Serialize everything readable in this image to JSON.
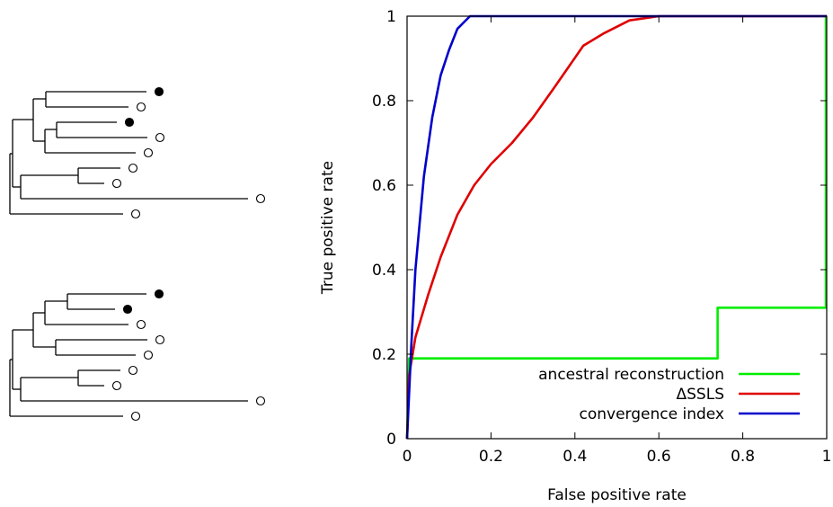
{
  "trees": [
    {
      "leaves": [
        {
          "state": "filled"
        },
        {
          "state": "open"
        },
        {
          "state": "filled"
        },
        {
          "state": "open"
        },
        {
          "state": "open"
        },
        {
          "state": "open"
        },
        {
          "state": "open"
        },
        {
          "state": "open"
        },
        {
          "state": "open"
        }
      ]
    },
    {
      "leaves": [
        {
          "state": "filled"
        },
        {
          "state": "filled"
        },
        {
          "state": "open"
        },
        {
          "state": "open"
        },
        {
          "state": "open"
        },
        {
          "state": "open"
        },
        {
          "state": "open"
        },
        {
          "state": "open"
        },
        {
          "state": "open"
        }
      ]
    }
  ],
  "chart_data": {
    "type": "line",
    "xlabel": "False positive rate",
    "ylabel": "True positive rate",
    "xlim": [
      0,
      1
    ],
    "ylim": [
      0,
      1
    ],
    "x_ticks": [
      "0",
      "0.2",
      "0.4",
      "0.6",
      "0.8",
      "1"
    ],
    "y_ticks": [
      "0",
      "0.2",
      "0.4",
      "0.6",
      "0.8",
      "1"
    ],
    "grid": false,
    "legend_position": "bottom-right",
    "series": [
      {
        "name": "ancestral reconstruction",
        "color": "#00ee00",
        "points": [
          [
            0.0,
            0.0
          ],
          [
            0.005,
            0.19
          ],
          [
            0.74,
            0.19
          ],
          [
            0.74,
            0.31
          ],
          [
            0.998,
            0.31
          ],
          [
            0.998,
            1.0
          ],
          [
            1.0,
            1.0
          ]
        ]
      },
      {
        "name": "ΔSSLS",
        "color": "#e00000",
        "points": [
          [
            0.0,
            0.0
          ],
          [
            0.005,
            0.15
          ],
          [
            0.02,
            0.24
          ],
          [
            0.05,
            0.34
          ],
          [
            0.08,
            0.43
          ],
          [
            0.12,
            0.53
          ],
          [
            0.16,
            0.6
          ],
          [
            0.2,
            0.65
          ],
          [
            0.25,
            0.7
          ],
          [
            0.3,
            0.76
          ],
          [
            0.35,
            0.83
          ],
          [
            0.42,
            0.93
          ],
          [
            0.47,
            0.96
          ],
          [
            0.53,
            0.99
          ],
          [
            0.6,
            1.0
          ],
          [
            1.0,
            1.0
          ]
        ]
      },
      {
        "name": "convergence index",
        "color": "#0000cc",
        "points": [
          [
            0.0,
            0.0
          ],
          [
            0.01,
            0.22
          ],
          [
            0.02,
            0.4
          ],
          [
            0.04,
            0.62
          ],
          [
            0.06,
            0.76
          ],
          [
            0.08,
            0.86
          ],
          [
            0.1,
            0.92
          ],
          [
            0.12,
            0.97
          ],
          [
            0.15,
            1.0
          ],
          [
            1.0,
            1.0
          ]
        ]
      }
    ]
  }
}
